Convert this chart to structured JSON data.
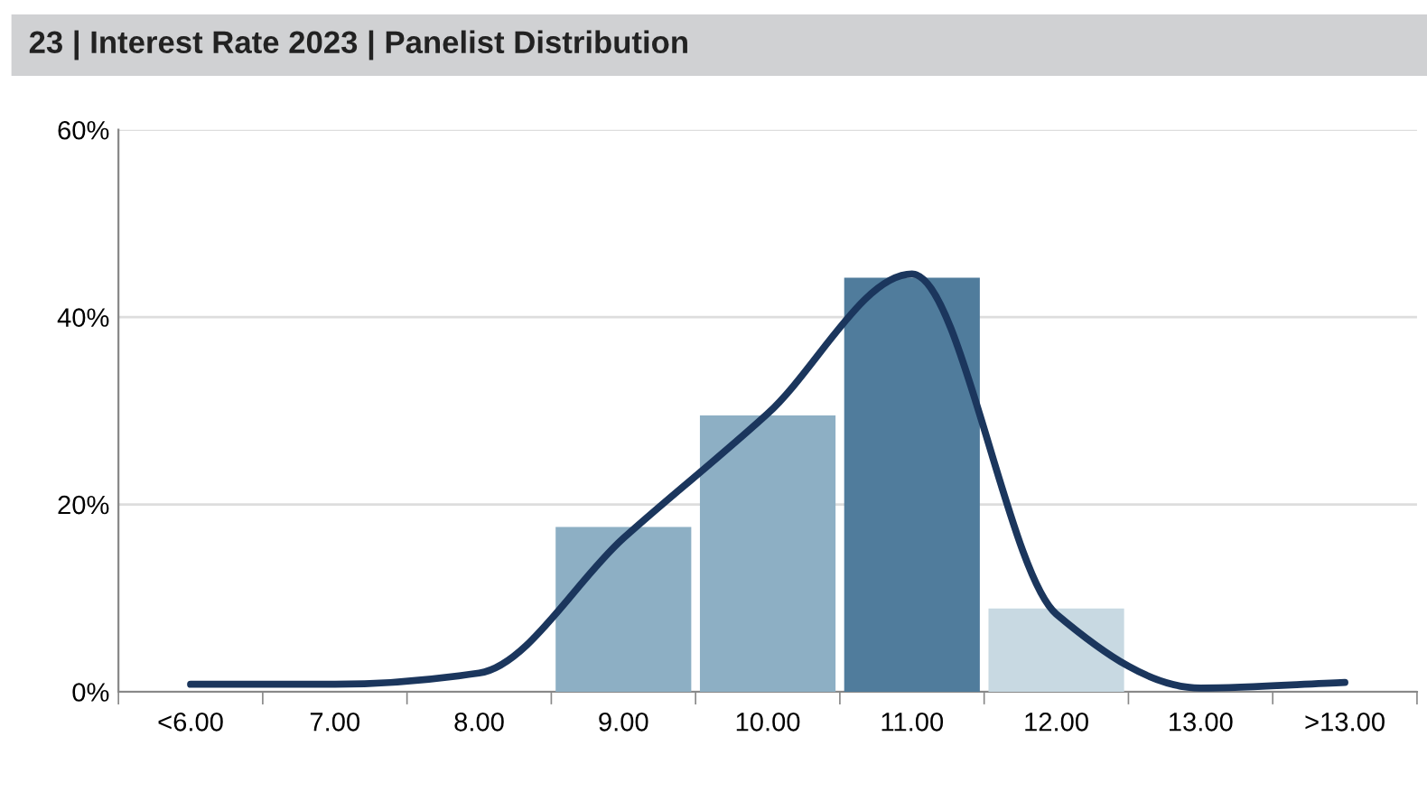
{
  "chart_data": {
    "type": "bar",
    "title": "23 | Interest Rate 2023 | Panelist Distribution",
    "categories": [
      "<6.00",
      "7.00",
      "8.00",
      "9.00",
      "10.00",
      "11.00",
      "12.00",
      "13.00",
      ">13.00"
    ],
    "series": [
      {
        "colors": [
          "#8dafc4",
          "#8dafc4",
          "#8dafc4",
          "#8dafc4",
          "#8dafc4",
          "#507c9c",
          "#c8d9e2",
          "#c8d9e2",
          "#c8d9e2"
        ],
        "values": [
          0,
          0,
          0,
          17.6,
          29.5,
          44.2,
          8.9,
          0,
          0
        ]
      },
      {
        "type": "line",
        "color": "#1b365d",
        "values": [
          0.8,
          0.8,
          2,
          16.4,
          29.7,
          44.6,
          8.3,
          0.4,
          1.0
        ]
      }
    ],
    "ylim": [
      0,
      60
    ],
    "yticks": [
      {
        "value": 0,
        "label": "0%"
      },
      {
        "value": 20,
        "label": "20%"
      },
      {
        "value": 40,
        "label": "40%"
      },
      {
        "value": 60,
        "label": "60%"
      }
    ],
    "grid": "y"
  }
}
